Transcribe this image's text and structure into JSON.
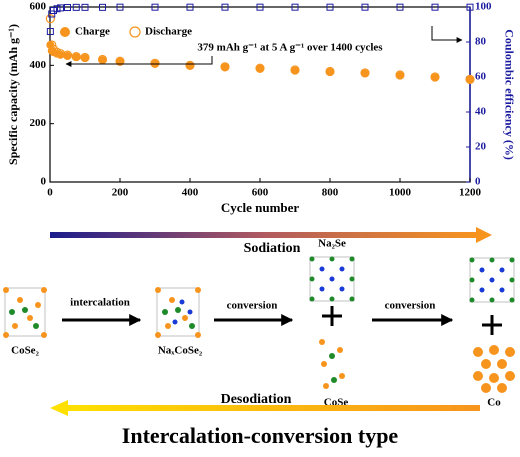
{
  "chart_data": {
    "type": "scatter",
    "ylabel": "Specific capacity (mAh g⁻¹)",
    "y2label": "Coulombic efficiency (%)",
    "xlabel": "Cycle number",
    "annotation": "379 mAh g⁻¹ at 5 A g⁻¹ over 1400 cycles",
    "legend": "upper left",
    "x": [
      1,
      5,
      10,
      20,
      30,
      50,
      75,
      100,
      150,
      200,
      300,
      400,
      500,
      600,
      700,
      800,
      900,
      1000,
      1100,
      1200
    ],
    "series": [
      {
        "name": "Charge",
        "color": "#f7941d",
        "marker": "filled-circle",
        "values": [
          470,
          450,
          445,
          440,
          436,
          432,
          428,
          425,
          418,
          412,
          405,
          398,
          393,
          388,
          382,
          377,
          372,
          365,
          358,
          350
        ]
      },
      {
        "name": "Discharge",
        "color": "#f7941d",
        "marker": "hollow-circle",
        "values": [
          560,
          470,
          455,
          445,
          440,
          435,
          430,
          427,
          420,
          414,
          407,
          400,
          395,
          390,
          384,
          379,
          374,
          367,
          360,
          352
        ]
      },
      {
        "color": "#1c1ca0",
        "marker": "hollow-square",
        "axis": "y2",
        "values": [
          86,
          96,
          98,
          99,
          99.5,
          99.7,
          99.8,
          99.8,
          99.8,
          99.9,
          99.9,
          99.9,
          99.9,
          99.9,
          99.9,
          99.9,
          99.9,
          99.9,
          99.9,
          99.9
        ]
      }
    ],
    "xlim": [
      0,
      1200
    ],
    "xticks": [
      0,
      200,
      400,
      600,
      800,
      1000,
      1200
    ],
    "ylim": [
      0,
      600
    ],
    "yticks": [
      0,
      200,
      400,
      600
    ],
    "y2lim": [
      0,
      100
    ],
    "y2ticks": [
      0,
      20,
      40,
      60,
      80,
      100
    ]
  },
  "diagram": {
    "sodiation": "Sodiation",
    "desodiation": "Desodiation",
    "steps": [
      "intercalation",
      "conversion",
      "conversion"
    ],
    "phases": [
      "CoSe₂",
      "NaₓCoSe₂",
      "Na₂Se",
      "CoSe",
      "Co"
    ],
    "title": "Intercalation-conversion type"
  }
}
